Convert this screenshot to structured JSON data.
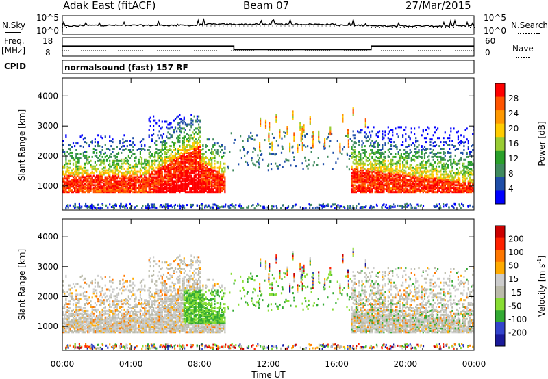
{
  "header": {
    "title": "Adak East (fitACF)",
    "beam": "Beam 07",
    "date": "27/Mar/2015"
  },
  "left_labels": {
    "nsky": "N.Sky",
    "freq": "Freq.",
    "freq_unit": "[MHz]",
    "cpid": "CPID"
  },
  "right_labels": {
    "nsearch": "N.Search",
    "nave": "Nave"
  },
  "colors": {
    "power": [
      "#0000ff",
      "#1f4ea8",
      "#3f8a5e",
      "#2aa02a",
      "#99cc33",
      "#ffcc00",
      "#ff9900",
      "#ff5500",
      "#ff0000"
    ],
    "velocity": [
      "#1a1a9a",
      "#3344cc",
      "#33aa33",
      "#88dd33",
      "#bbbbaa",
      "#cccccc",
      "#ffaa00",
      "#ff7700",
      "#ff2200",
      "#cc0000"
    ]
  },
  "chart_data": [
    {
      "type": "line",
      "name": "noise",
      "ylabels_left": [
        "10^5",
        "10^0"
      ],
      "ylabels_right": [
        "10^5",
        "10^0"
      ],
      "x_range": [
        0,
        24
      ]
    },
    {
      "type": "line",
      "name": "frequency",
      "ytick_left": [
        "18",
        "8"
      ],
      "ytick_right": [
        "60",
        "0"
      ],
      "ylim_left": [
        8,
        18
      ],
      "ylim_right": [
        0,
        60
      ],
      "x": [
        0,
        10,
        10,
        18,
        18,
        24
      ],
      "y_freq_mhz": [
        13.5,
        13.5,
        11.5,
        11.5,
        13.5,
        13.5
      ]
    },
    {
      "type": "text",
      "name": "cpid",
      "text": "normalsound (fast) 157 RF"
    },
    {
      "type": "heatmap",
      "name": "power",
      "ylabel": "Slant Range [km]",
      "yticks": [
        "4000",
        "3000",
        "2000",
        "1000"
      ],
      "ylim": [
        200,
        4600
      ],
      "colorbar_label": "Power [dB]",
      "colorbar_ticks": [
        "28",
        "24",
        "20",
        "16",
        "12",
        "8",
        "4"
      ]
    },
    {
      "type": "heatmap",
      "name": "velocity",
      "ylabel": "Slant Range [km]",
      "yticks": [
        "4000",
        "3000",
        "2000",
        "1000"
      ],
      "ylim": [
        200,
        4600
      ],
      "colorbar_label": "Velocity [m s",
      "colorbar_label_sup": "-1",
      "colorbar_label_end": "]",
      "colorbar_ticks": [
        "200",
        "100",
        "50",
        "15",
        "-15",
        "-50",
        "-100",
        "-200"
      ]
    }
  ],
  "xaxis": {
    "ticks": [
      "00:00",
      "04:00",
      "08:00",
      "12:00",
      "16:00",
      "20:00",
      "00:00"
    ],
    "label": "Time UT"
  }
}
